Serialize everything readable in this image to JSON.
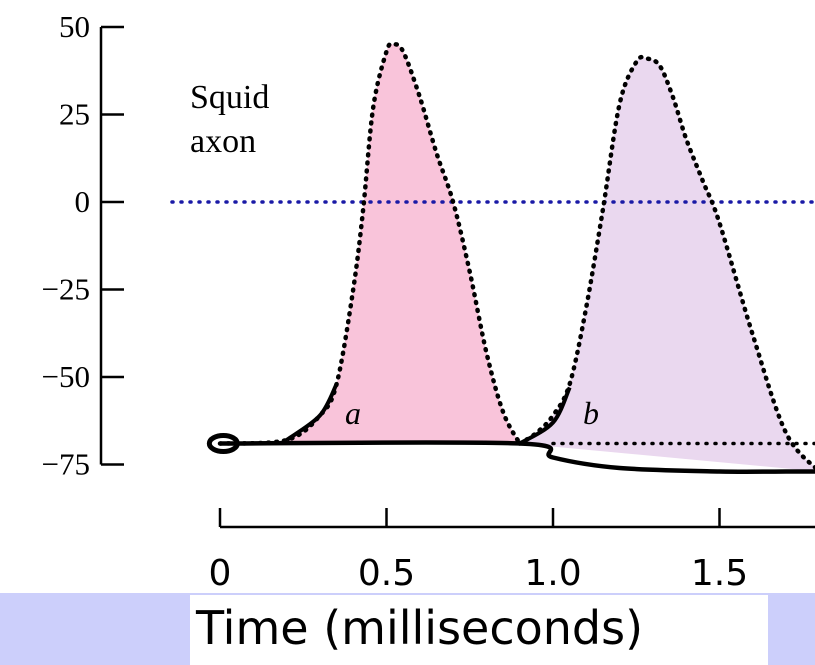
{
  "chart_data": {
    "type": "line",
    "title": "",
    "xlabel": "Time (milliseconds)",
    "ylabel": "",
    "xlim": [
      0,
      1.8
    ],
    "ylim": [
      -75,
      50
    ],
    "x_ticks": [
      "0",
      "0.5",
      "1.0",
      "1.5"
    ],
    "x_tick_values": [
      0,
      0.5,
      1.0,
      1.5
    ],
    "y_ticks": [
      "50",
      "25",
      "0",
      "−25",
      "−50",
      "−75"
    ],
    "y_tick_values": [
      50,
      25,
      0,
      -25,
      -50,
      -75
    ],
    "annotation": [
      "Squid",
      "axon"
    ],
    "reference_lines": [
      {
        "y": 0,
        "style": "dotted",
        "color": "#1a1aa6"
      },
      {
        "y": -69,
        "x_from": 1.0,
        "style": "dotted",
        "color": "#000000"
      }
    ],
    "series": [
      {
        "name": "a",
        "fill": "#f9c4da",
        "x": [
          0.0,
          0.2,
          0.3,
          0.35,
          0.4,
          0.43,
          0.46,
          0.5,
          0.52,
          0.55,
          0.6,
          0.65,
          0.7,
          0.75,
          0.8,
          0.85,
          0.9
        ],
        "y": [
          -69,
          -68,
          -61,
          -52,
          -25,
          -2,
          27,
          43,
          45,
          43,
          30,
          14,
          0,
          -20,
          -43,
          -60,
          -69
        ]
      },
      {
        "name": "b",
        "fill": "#ead8ef",
        "x": [
          0.9,
          0.95,
          1.0,
          1.05,
          1.1,
          1.15,
          1.2,
          1.25,
          1.28,
          1.32,
          1.36,
          1.4,
          1.45,
          1.5,
          1.6,
          1.7,
          1.8
        ],
        "y": [
          -69,
          -66,
          -61,
          -52,
          -30,
          -2,
          28,
          40,
          41,
          39,
          30,
          18,
          6,
          -6,
          -38,
          -66,
          -77
        ]
      }
    ],
    "baseline": {
      "x": [
        0.0,
        0.9,
        1.0,
        1.2,
        1.5,
        1.7,
        1.8
      ],
      "y": [
        -69,
        -69,
        -73,
        -76,
        -77,
        -77,
        -77
      ]
    }
  },
  "colors": {
    "banner": "#cccffb",
    "reference_dotted": "#1a1aa6",
    "curve": "#000000"
  }
}
